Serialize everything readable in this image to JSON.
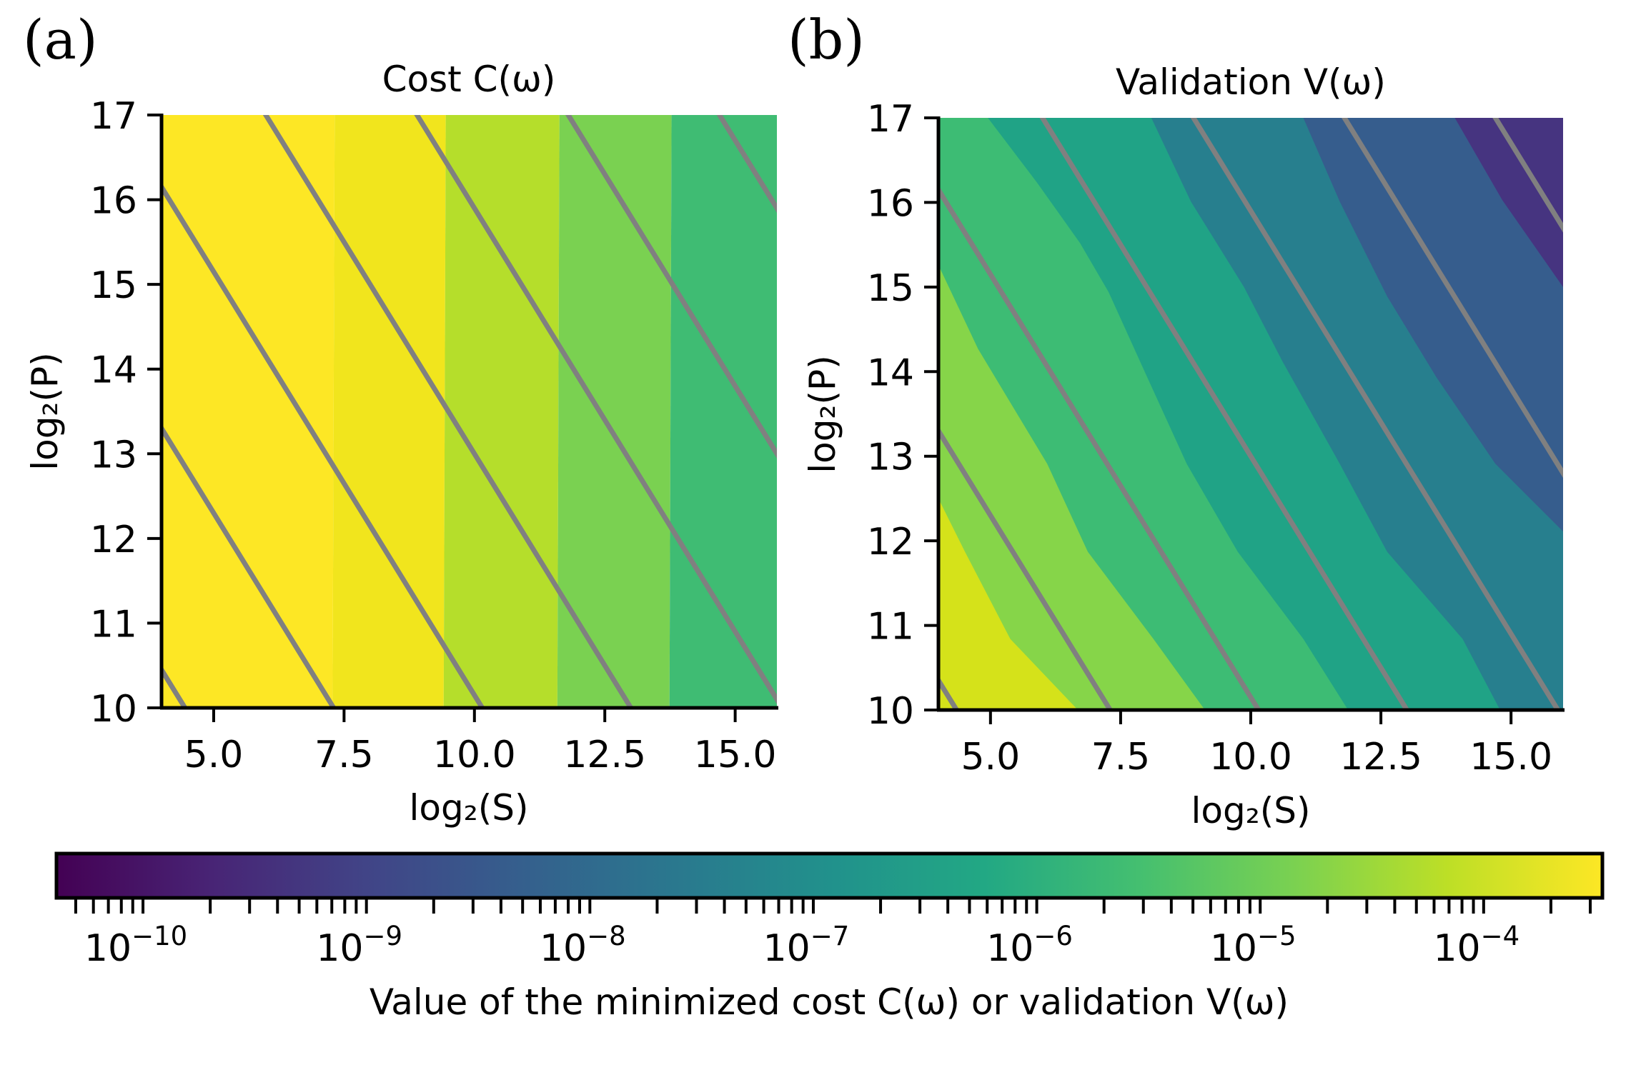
{
  "panel_labels": [
    "(a)",
    "(b)"
  ],
  "colorbar": {
    "label": "Value of the minimized cost C(ω) or validation V(ω)",
    "scale": "log",
    "range": [
      4.1e-11,
      0.00034
    ],
    "major_ticks": [
      {
        "base": "10",
        "exp": "−10",
        "value": 1e-10
      },
      {
        "base": "10",
        "exp": "−9",
        "value": 1e-09
      },
      {
        "base": "10",
        "exp": "−8",
        "value": 1e-08
      },
      {
        "base": "10",
        "exp": "−7",
        "value": 1e-07
      },
      {
        "base": "10",
        "exp": "−6",
        "value": 1e-06
      },
      {
        "base": "10",
        "exp": "−5",
        "value": 1e-05
      },
      {
        "base": "10",
        "exp": "−4",
        "value": 0.0001
      }
    ],
    "colormap": "viridis",
    "stops": [
      "#440154",
      "#482475",
      "#414487",
      "#355f8d",
      "#2a788e",
      "#21918c",
      "#22a884",
      "#44bf70",
      "#7ad151",
      "#bddf26",
      "#fde725"
    ]
  },
  "chart_data": [
    {
      "type": "heatmap",
      "subtype": "filled-contour",
      "title": "Cost C(ω)",
      "xlabel": "log₂(S)",
      "ylabel": "log₂(P)",
      "xlim": [
        4.0,
        15.8
      ],
      "ylim": [
        10,
        17
      ],
      "xticks": [
        "5.0",
        "7.5",
        "10.0",
        "12.5",
        "15.0"
      ],
      "xtick_values": [
        5.0,
        7.5,
        10.0,
        12.5,
        15.0
      ],
      "yticks": [
        "10",
        "11",
        "12",
        "13",
        "14",
        "15",
        "16",
        "17"
      ],
      "ytick_values": [
        10,
        11,
        12,
        13,
        14,
        15,
        16,
        17
      ],
      "grid": false,
      "bands": [
        {
          "x_from": 4.0,
          "x_to": 7.28,
          "color": "#fde725"
        },
        {
          "x_from": 7.28,
          "x_to": 9.41,
          "color": "#f1e51d"
        },
        {
          "x_from": 9.41,
          "x_to": 11.59,
          "color": "#b5de2b"
        },
        {
          "x_from": 11.59,
          "x_to": 13.74,
          "color": "#7ad151"
        },
        {
          "x_from": 13.74,
          "x_to": 15.8,
          "color": "#3fbc73"
        }
      ],
      "iso_lines": {
        "description": "log2(S) + log2(P) = const",
        "color": "#808080",
        "constants": [
          14.45,
          17.3,
          20.15,
          23.0,
          25.9,
          28.8,
          31.7
        ]
      }
    },
    {
      "type": "heatmap",
      "subtype": "filled-contour",
      "title": "Validation V(ω)",
      "xlabel": "log₂(S)",
      "ylabel": "log₂(P)",
      "xlim": [
        4.0,
        16.0
      ],
      "ylim": [
        10,
        17
      ],
      "xticks": [
        "5.0",
        "7.5",
        "10.0",
        "12.5",
        "15.0"
      ],
      "xtick_values": [
        5.0,
        7.5,
        10.0,
        12.5,
        15.0
      ],
      "yticks": [
        "10",
        "11",
        "12",
        "13",
        "14",
        "15",
        "16",
        "17"
      ],
      "ytick_values": [
        10,
        11,
        12,
        13,
        14,
        15,
        16,
        17
      ],
      "grid": false,
      "background": "#d5e21a",
      "regions": [
        {
          "color": "#86d549",
          "boundary": [
            [
              4.0,
              12.5
            ],
            [
              4.51,
              11.87
            ],
            [
              5.38,
              10.84
            ],
            [
              6.68,
              10.0
            ]
          ]
        },
        {
          "color": "#3dbc74",
          "boundary": [
            [
              4.0,
              15.26
            ],
            [
              4.76,
              14.27
            ],
            [
              6.09,
              12.91
            ],
            [
              6.87,
              11.87
            ],
            [
              8.13,
              10.84
            ],
            [
              9.12,
              10.0
            ]
          ]
        },
        {
          "color": "#20a386",
          "boundary": [
            [
              4.95,
              17.0
            ],
            [
              5.9,
              16.23
            ],
            [
              6.72,
              15.52
            ],
            [
              7.27,
              14.94
            ],
            [
              7.94,
              14.03
            ],
            [
              8.77,
              12.91
            ],
            [
              9.75,
              11.87
            ],
            [
              11.01,
              10.84
            ],
            [
              11.87,
              10.0
            ]
          ]
        },
        {
          "color": "#277f8e",
          "boundary": [
            [
              8.09,
              17.0
            ],
            [
              8.85,
              16.01
            ],
            [
              9.87,
              15.0
            ],
            [
              10.61,
              14.12
            ],
            [
              11.71,
              12.91
            ],
            [
              12.62,
              11.87
            ],
            [
              14.07,
              10.84
            ],
            [
              14.79,
              10.0
            ]
          ]
        },
        {
          "color": "#365d8d",
          "boundary": [
            [
              11.01,
              17.0
            ],
            [
              11.71,
              16.01
            ],
            [
              12.62,
              14.89
            ],
            [
              13.57,
              13.93
            ],
            [
              14.7,
              12.91
            ],
            [
              16.0,
              12.11
            ]
          ]
        },
        {
          "color": "#463480",
          "boundary": [
            [
              13.92,
              17.0
            ],
            [
              14.83,
              16.03
            ],
            [
              16.0,
              15.0
            ]
          ]
        }
      ],
      "iso_lines": {
        "description": "log2(S) + log2(P) = const",
        "color": "#808080",
        "constants": [
          14.35,
          17.3,
          20.15,
          23.0,
          25.9,
          28.8,
          31.7
        ]
      }
    }
  ]
}
